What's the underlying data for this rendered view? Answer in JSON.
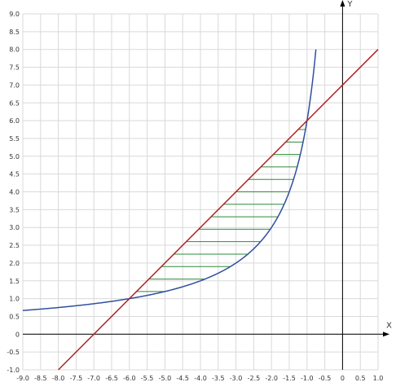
{
  "chart_data": {
    "type": "line",
    "title": "",
    "xlabel": "X",
    "ylabel": "Y",
    "xlim": [
      -9.0,
      1.0
    ],
    "ylim": [
      -1.0,
      9.0
    ],
    "grid": true,
    "grid_step": 0.5,
    "x_ticks": [
      "-9.0",
      "-8.5",
      "-8.0",
      "-7.5",
      "-7.0",
      "-6.5",
      "-6.0",
      "-5.5",
      "-5.0",
      "-4.5",
      "-4.0",
      "-3.5",
      "-3.0",
      "-2.5",
      "-2.0",
      "-1.5",
      "-1.0",
      "-0.5",
      "0",
      "0.5",
      "1.0"
    ],
    "y_ticks": [
      "-1.0",
      "-0.5",
      "0",
      "0.5",
      "1.0",
      "1.5",
      "2.0",
      "2.5",
      "3.0",
      "3.5",
      "4.0",
      "4.5",
      "5.0",
      "5.5",
      "6.0",
      "6.5",
      "7.0",
      "7.5",
      "8.0",
      "8.5",
      "9.0"
    ],
    "series": [
      {
        "color": "#2f4f9e",
        "x": [
          -9.0,
          -8.0,
          -7.0,
          -6.0,
          -5.0,
          -4.0,
          -3.0,
          -2.5,
          -2.0,
          -1.75,
          -1.5,
          -1.25,
          -1.0,
          -0.9,
          -0.8,
          -0.75
        ],
        "y": [
          0.67,
          0.75,
          0.86,
          1.0,
          1.2,
          1.5,
          2.0,
          2.4,
          3.0,
          3.43,
          4.0,
          4.8,
          6.0,
          6.67,
          7.5,
          8.0
        ]
      },
      {
        "color": "#b22222",
        "x": [
          -8.0,
          1.0
        ],
        "y": [
          -1.0,
          8.0
        ]
      }
    ],
    "shaded_region": {
      "color": "#2e8b3a",
      "x_from": -6.0,
      "x_to": -1.0,
      "between": [
        "line y = x + 7",
        "curve y = -6/x"
      ],
      "hatch": "horizontal"
    }
  }
}
